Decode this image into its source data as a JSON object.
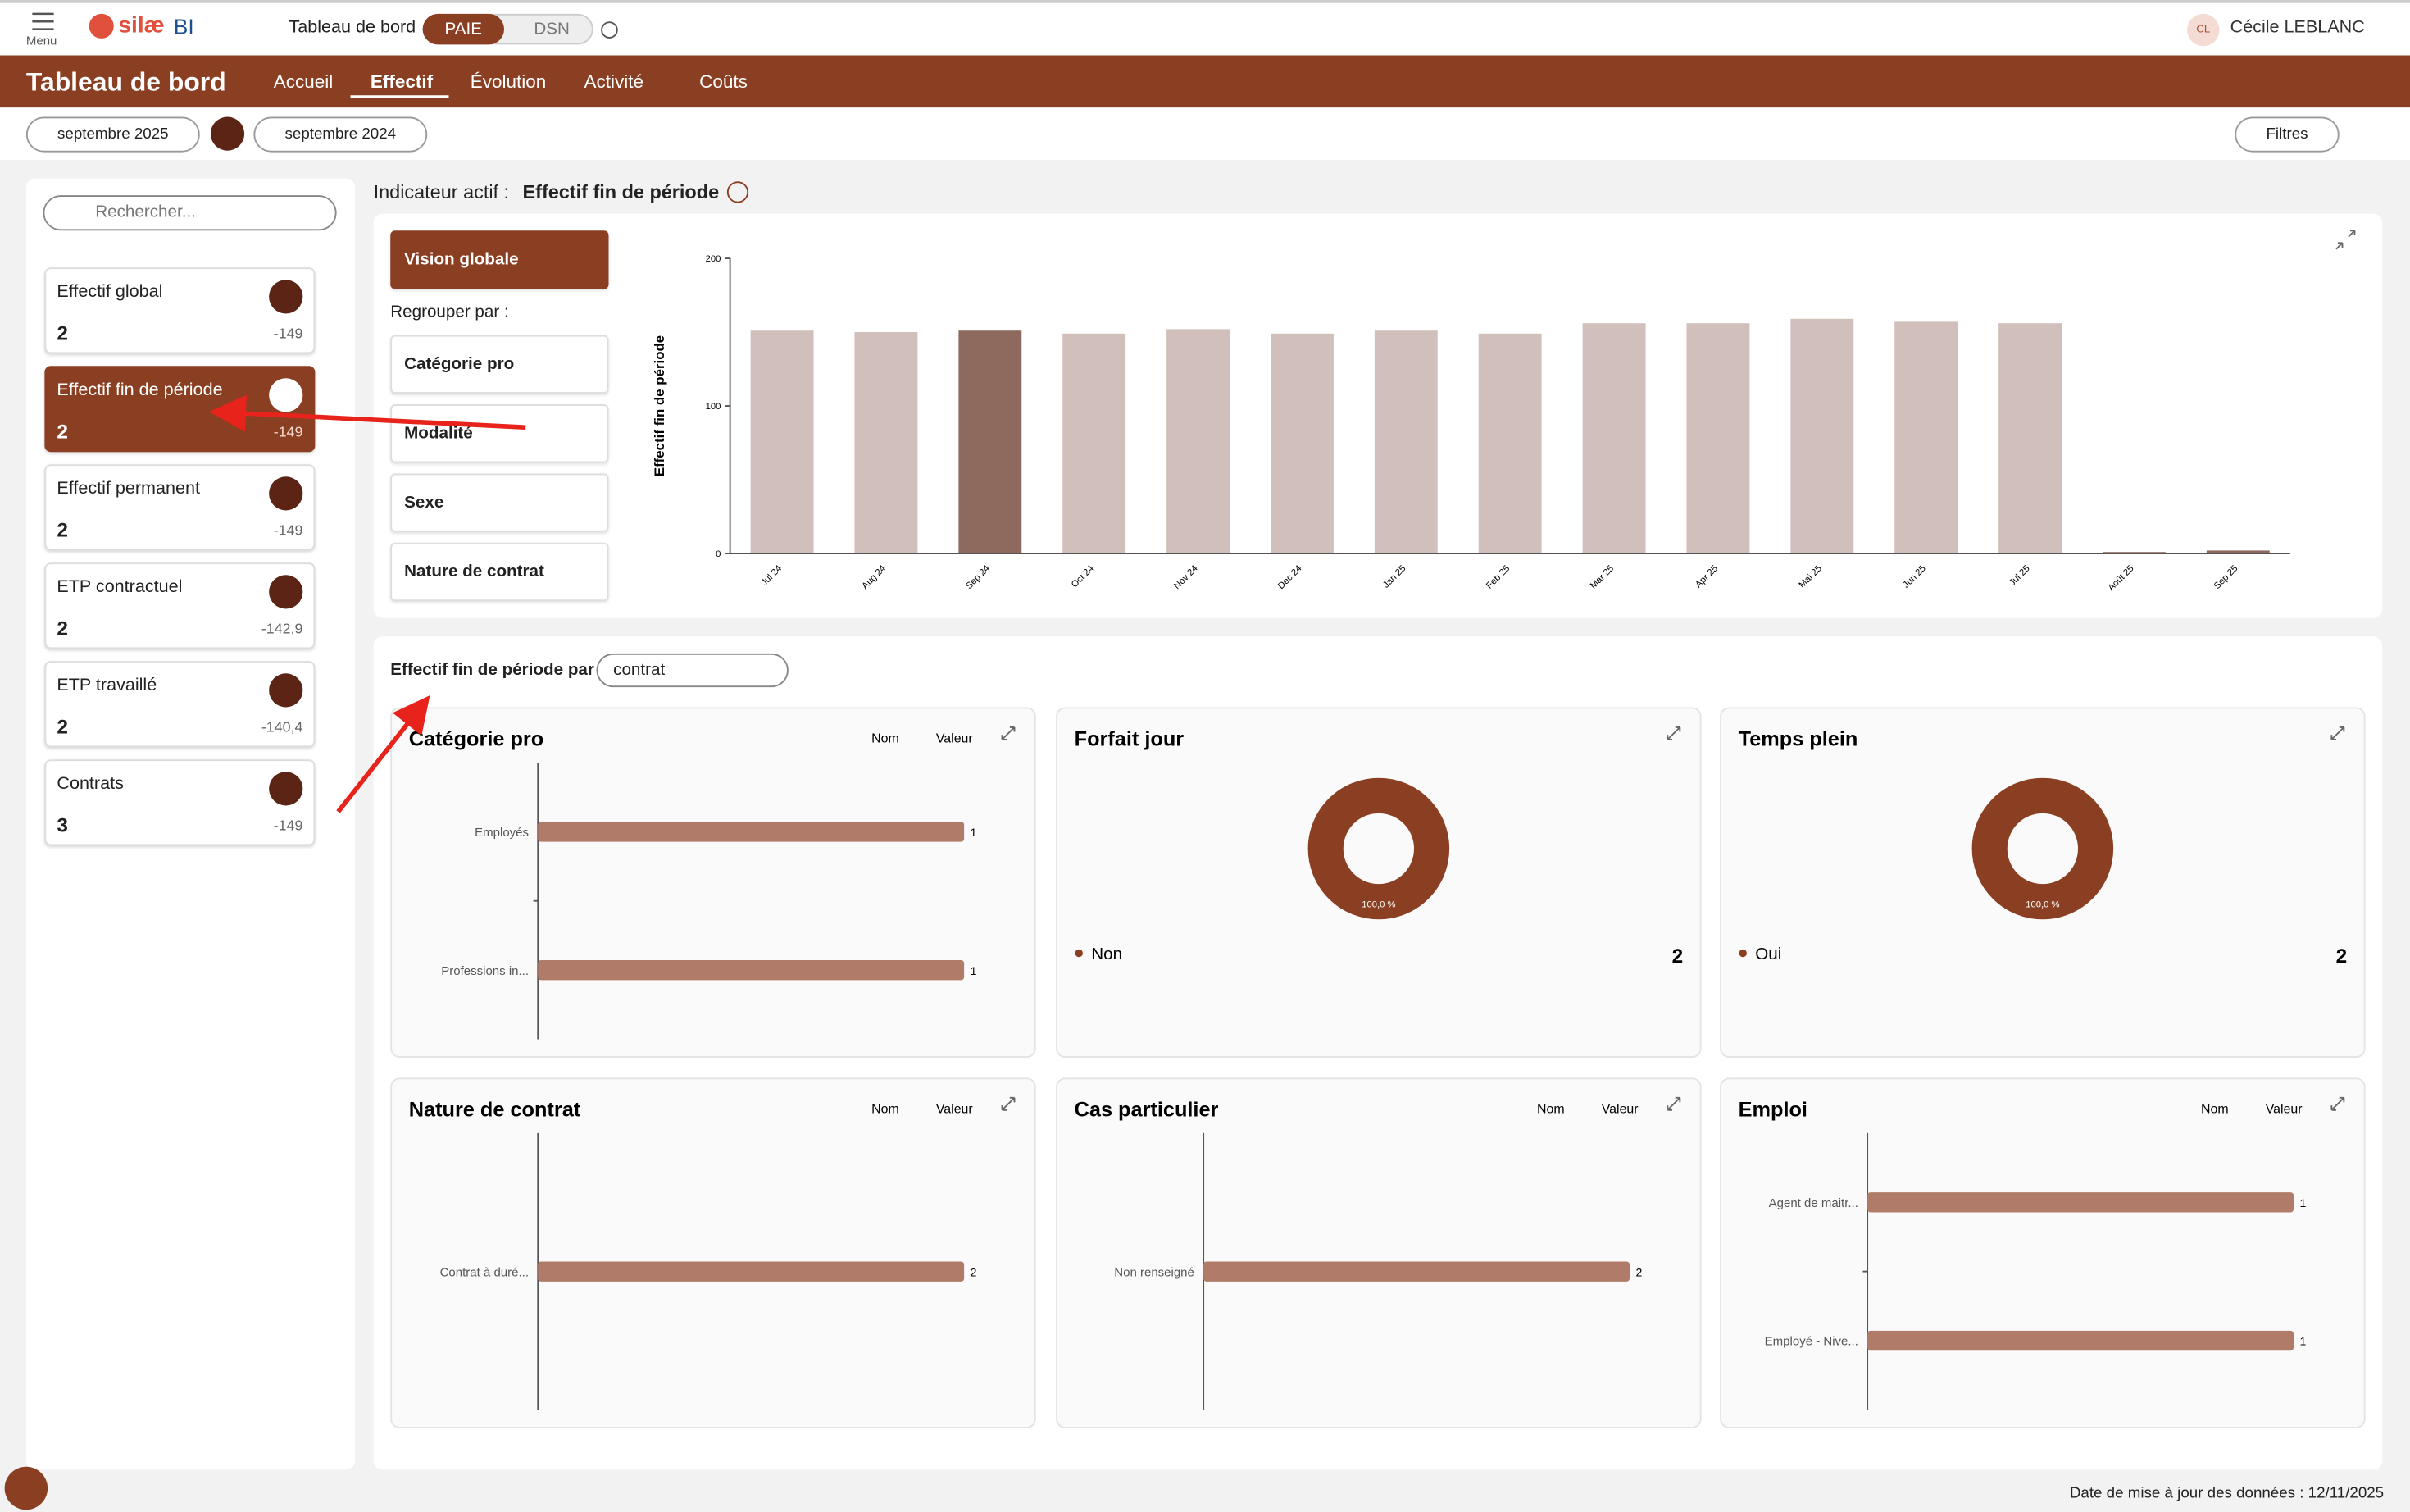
{
  "header": {
    "menu": "Menu",
    "logo": "silæ",
    "logo_suffix": "BI",
    "title": "Tableau de bord",
    "toggle": [
      "PAIE",
      "DSN"
    ],
    "user_initials": "CL",
    "user_name": "Cécile LEBLANC"
  },
  "nav": {
    "title": "Tableau de bord",
    "tabs": [
      "Accueil",
      "Effectif",
      "Évolution",
      "Activité",
      "Coûts"
    ]
  },
  "filters": {
    "period": "septembre 2025",
    "compare_period": "septembre 2024",
    "button": "Filtres"
  },
  "sidebar": {
    "search_placeholder": "Rechercher...",
    "kpis": [
      {
        "label": "Effectif global",
        "value": 2,
        "delta": -149
      },
      {
        "label": "Effectif fin de période",
        "value": 2,
        "delta": -149,
        "active": true
      },
      {
        "label": "Effectif permanent",
        "value": 2,
        "delta": -149
      },
      {
        "label": "ETP contractuel",
        "value": 2,
        "delta": "-142,9"
      },
      {
        "label": "ETP travaillé",
        "value": 2,
        "delta": "-140,4"
      },
      {
        "label": "Contrats",
        "value": 3,
        "delta": -149
      }
    ]
  },
  "indicator": {
    "prefix": "Indicateur actif :",
    "name": "Effectif fin de période"
  },
  "grouping": {
    "primary": "Vision globale",
    "label": "Regrouper par :",
    "options": [
      "Catégorie pro",
      "Modalité",
      "Sexe",
      "Nature de contrat"
    ]
  },
  "main_chart": {
    "type": "bar",
    "y_label": "Effectif fin de période",
    "categories": [
      "Jul 24",
      "Aug 24",
      "Sep 24",
      "Oct 24",
      "Nov 24",
      "Dec 24",
      "Jan 25",
      "Feb 25",
      "Mar 25",
      "Apr 25",
      "Mai 25",
      "Jun 25",
      "Jul 25",
      "Août 25",
      "Sep 25"
    ],
    "values": [
      151,
      150,
      151,
      149,
      152,
      149,
      151,
      149,
      156,
      156,
      159,
      157,
      156,
      1,
      2
    ],
    "colors": [
      "#d0bfba",
      "#d0bfba",
      "#8d6a5d",
      "#d0bfba",
      "#d0bfba",
      "#d0bfba",
      "#d0bfba",
      "#d0bfba",
      "#d0bfba",
      "#d0bfba",
      "#d0bfba",
      "#d0bfba",
      "#d0bfba",
      "#8d6a5d",
      "#8d6a5d"
    ],
    "ylim": [
      0,
      200
    ],
    "yticks": [
      0,
      100,
      200
    ]
  },
  "breakdown": {
    "label": "Effectif fin de période par",
    "select": "contrat",
    "sort_labels": [
      "Nom",
      "Valeur"
    ],
    "panels": [
      {
        "type": "hbar",
        "title": "Catégorie pro",
        "categories": [
          "Employés",
          "Professions in..."
        ],
        "values": [
          1,
          1
        ],
        "xlim": [
          0,
          1.1
        ],
        "color": "#b07c69"
      },
      {
        "type": "donut",
        "title": "Forfait jour",
        "categories": [
          "Non"
        ],
        "values": [
          100
        ],
        "value_labels": [
          "100,0 %"
        ],
        "legend_values": [
          2
        ],
        "color": "#8b3f22"
      },
      {
        "type": "donut",
        "title": "Temps plein",
        "categories": [
          "Oui"
        ],
        "values": [
          100
        ],
        "value_labels": [
          "100,0 %"
        ],
        "legend_values": [
          2
        ],
        "color": "#8b3f22"
      },
      {
        "type": "hbar",
        "title": "Nature de contrat",
        "categories": [
          "Contrat à duré..."
        ],
        "values": [
          2
        ],
        "xlim": [
          0,
          2.2
        ],
        "color": "#b07c69"
      },
      {
        "type": "hbar",
        "title": "Cas particulier",
        "categories": [
          "Non renseigné"
        ],
        "values": [
          2
        ],
        "xlim": [
          0,
          2.2
        ],
        "color": "#b07c69"
      },
      {
        "type": "hbar",
        "title": "Emploi",
        "categories": [
          "Agent de maitr...",
          "Employé - Nive..."
        ],
        "values": [
          1,
          1
        ],
        "xlim": [
          0,
          1.1
        ],
        "color": "#b07c69"
      }
    ]
  },
  "footer": {
    "updated": "Date de mise à jour des données : 12/11/2025"
  }
}
